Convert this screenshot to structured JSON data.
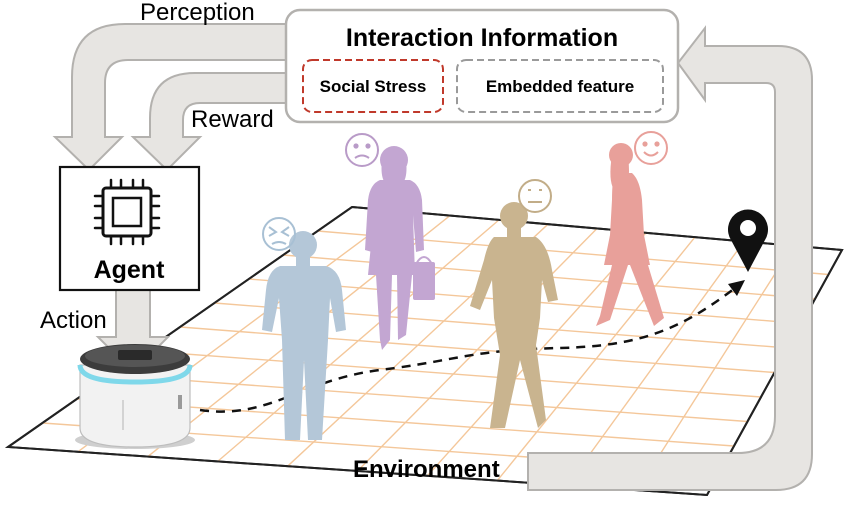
{
  "labels": {
    "perception": "Perception",
    "reward": "Reward",
    "action": "Action",
    "agent": "Agent",
    "environment": "Environment"
  },
  "interaction_box": {
    "title": "Interaction Information",
    "social_stress": "Social Stress",
    "embedded_feature": "Embedded feature"
  },
  "colors": {
    "arrow_fill": "#e7e5e2",
    "arrow_stroke": "#b3b1ae",
    "social_stress_border": "#c0392b",
    "embedded_border": "#9a9a9a",
    "grid_line": "#f4c79a",
    "person_blue": "#b4c7d8",
    "person_purple": "#c3a6d2",
    "person_tan": "#c9b48f",
    "person_pink": "#e8a09a",
    "robot_glow": "#7fd8ea"
  },
  "faces": [
    "angry",
    "sad",
    "neutral",
    "happy"
  ],
  "icons": [
    "chip-icon",
    "location-pin-icon"
  ]
}
